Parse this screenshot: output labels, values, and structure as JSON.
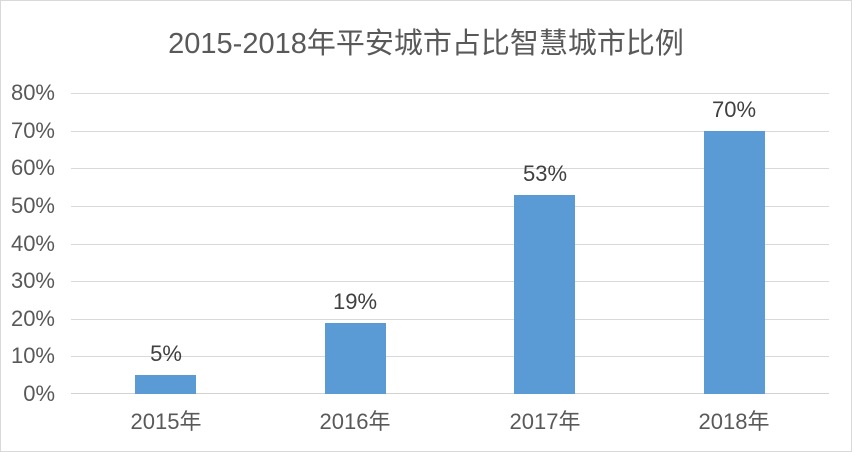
{
  "chart_data": {
    "type": "bar",
    "title": "2015-2018年平安城市占比智慧城市比例",
    "categories": [
      "2015年",
      "2016年",
      "2017年",
      "2018年"
    ],
    "values": [
      5,
      19,
      53,
      70
    ],
    "data_labels": [
      "5%",
      "19%",
      "53%",
      "70%"
    ],
    "xlabel": "",
    "ylabel": "",
    "ylim": [
      0,
      80
    ],
    "yticks": [
      0,
      10,
      20,
      30,
      40,
      50,
      60,
      70,
      80
    ],
    "ytick_labels": [
      "0%",
      "10%",
      "20%",
      "30%",
      "40%",
      "50%",
      "60%",
      "70%",
      "80%"
    ],
    "grid": true,
    "legend": false,
    "colors": {
      "bar": "#5B9BD5",
      "gridline": "#D9D9D9",
      "axis_line": "#D2D2D2",
      "axis_text": "#595959",
      "data_label_text": "#404040",
      "title_text": "#595959",
      "frame_border": "#D9D9D9",
      "background": "#FFFFFF"
    }
  }
}
